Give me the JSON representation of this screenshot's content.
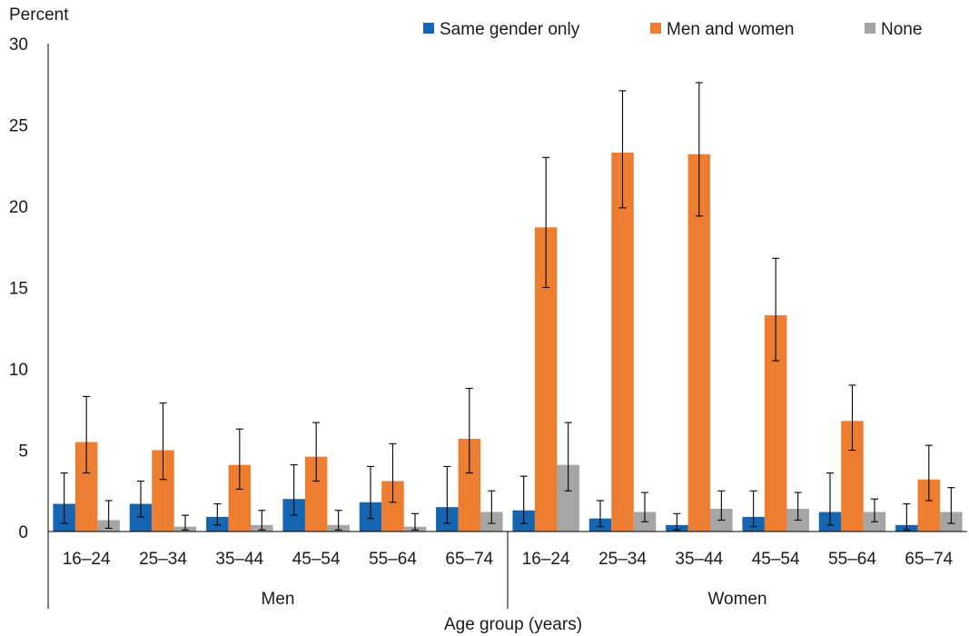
{
  "chart_data": {
    "type": "bar",
    "ylabel": "Percent",
    "xlabel": "Age group (years)",
    "ylim": [
      0,
      30
    ],
    "yticks": [
      0,
      5,
      10,
      15,
      20,
      25,
      30
    ],
    "grid": false,
    "legend_position": "top",
    "groups": [
      {
        "label": "Men",
        "categories": [
          "16–24",
          "25–34",
          "35–44",
          "45–54",
          "55–64",
          "65–74"
        ]
      },
      {
        "label": "Women",
        "categories": [
          "16–24",
          "25–34",
          "35–44",
          "45–54",
          "55–64",
          "65–74"
        ]
      }
    ],
    "series": [
      {
        "name": "Same gender only",
        "color": "#1565b0",
        "values": [
          1.7,
          1.7,
          0.9,
          2.0,
          1.8,
          1.5,
          1.3,
          0.8,
          0.4,
          0.9,
          1.2,
          0.4
        ],
        "error_low": [
          0.5,
          0.9,
          0.4,
          1.0,
          0.8,
          0.5,
          0.5,
          0.3,
          0.1,
          0.3,
          0.4,
          0.1
        ],
        "error_high": [
          3.6,
          3.1,
          1.7,
          4.1,
          4.0,
          4.0,
          3.4,
          1.9,
          1.1,
          2.5,
          3.6,
          1.7
        ]
      },
      {
        "name": "Men and women",
        "color": "#ed7d31",
        "values": [
          5.5,
          5.0,
          4.1,
          4.6,
          3.1,
          5.7,
          18.7,
          23.3,
          23.2,
          13.3,
          6.8,
          3.2
        ],
        "error_low": [
          3.6,
          3.2,
          2.6,
          3.1,
          1.8,
          3.6,
          15.0,
          19.9,
          19.4,
          10.5,
          5.0,
          1.9
        ],
        "error_high": [
          8.3,
          7.9,
          6.3,
          6.7,
          5.4,
          8.8,
          23.0,
          27.1,
          27.6,
          16.8,
          9.0,
          5.3
        ]
      },
      {
        "name": "None",
        "color": "#a5a5a5",
        "values": [
          0.7,
          0.3,
          0.4,
          0.4,
          0.3,
          1.2,
          4.1,
          1.2,
          1.4,
          1.4,
          1.2,
          1.2
        ],
        "error_low": [
          0.2,
          0.1,
          0.1,
          0.1,
          0.1,
          0.5,
          2.5,
          0.6,
          0.7,
          0.7,
          0.6,
          0.5
        ],
        "error_high": [
          1.9,
          1.0,
          1.3,
          1.3,
          1.1,
          2.5,
          6.7,
          2.4,
          2.5,
          2.4,
          2.0,
          2.7
        ]
      }
    ]
  }
}
